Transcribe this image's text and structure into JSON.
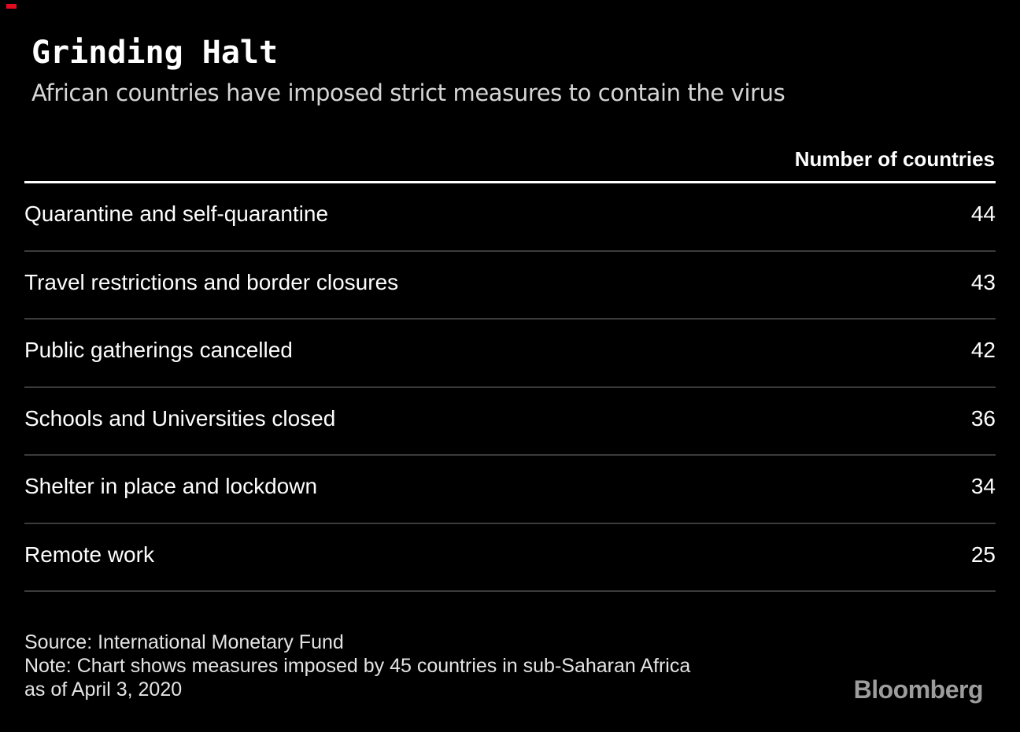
{
  "header": {
    "title": "Grinding Halt",
    "subtitle": "African countries have imposed strict measures to contain the virus"
  },
  "table": {
    "value_column_header": "Number of countries",
    "rows": [
      {
        "label": "Quarantine and self-quarantine",
        "value": "44"
      },
      {
        "label": "Travel restrictions and border closures",
        "value": "43"
      },
      {
        "label": "Public gatherings cancelled",
        "value": "42"
      },
      {
        "label": "Schools and Universities closed",
        "value": "36"
      },
      {
        "label": "Shelter in place and lockdown",
        "value": "34"
      },
      {
        "label": "Remote work",
        "value": "25"
      }
    ]
  },
  "footer": {
    "source_line": "Source: International Monetary Fund",
    "note_line1": "Note: Chart shows measures imposed by 45 countries in sub-Saharan Africa",
    "note_line2": "as of April 3, 2020",
    "brand": "Bloomberg"
  },
  "colors": {
    "background": "#000000",
    "accent_red": "#e20b1e",
    "header_rule": "#ffffff",
    "row_separator": "#3b3b3b",
    "title": "#ffffff",
    "subtitle": "#d6d6d6",
    "body": "#fdfdfd",
    "footnote": "#e4e4e4",
    "brand_gray": "#9d9d9d"
  },
  "chart_data": {
    "type": "table",
    "title": "Grinding Halt",
    "subtitle": "African countries have imposed strict measures to contain the virus",
    "value_label": "Number of countries",
    "categories": [
      "Quarantine and self-quarantine",
      "Travel restrictions and border closures",
      "Public gatherings cancelled",
      "Schools and Universities closed",
      "Shelter in place and lockdown",
      "Remote work"
    ],
    "values": [
      44,
      43,
      42,
      36,
      34,
      25
    ],
    "value_range": [
      0,
      45
    ],
    "source": "International Monetary Fund",
    "note": "Chart shows measures imposed by 45 countries in sub-Saharan Africa as of April 3, 2020",
    "legend": "none",
    "grid": "row-separators-only"
  }
}
